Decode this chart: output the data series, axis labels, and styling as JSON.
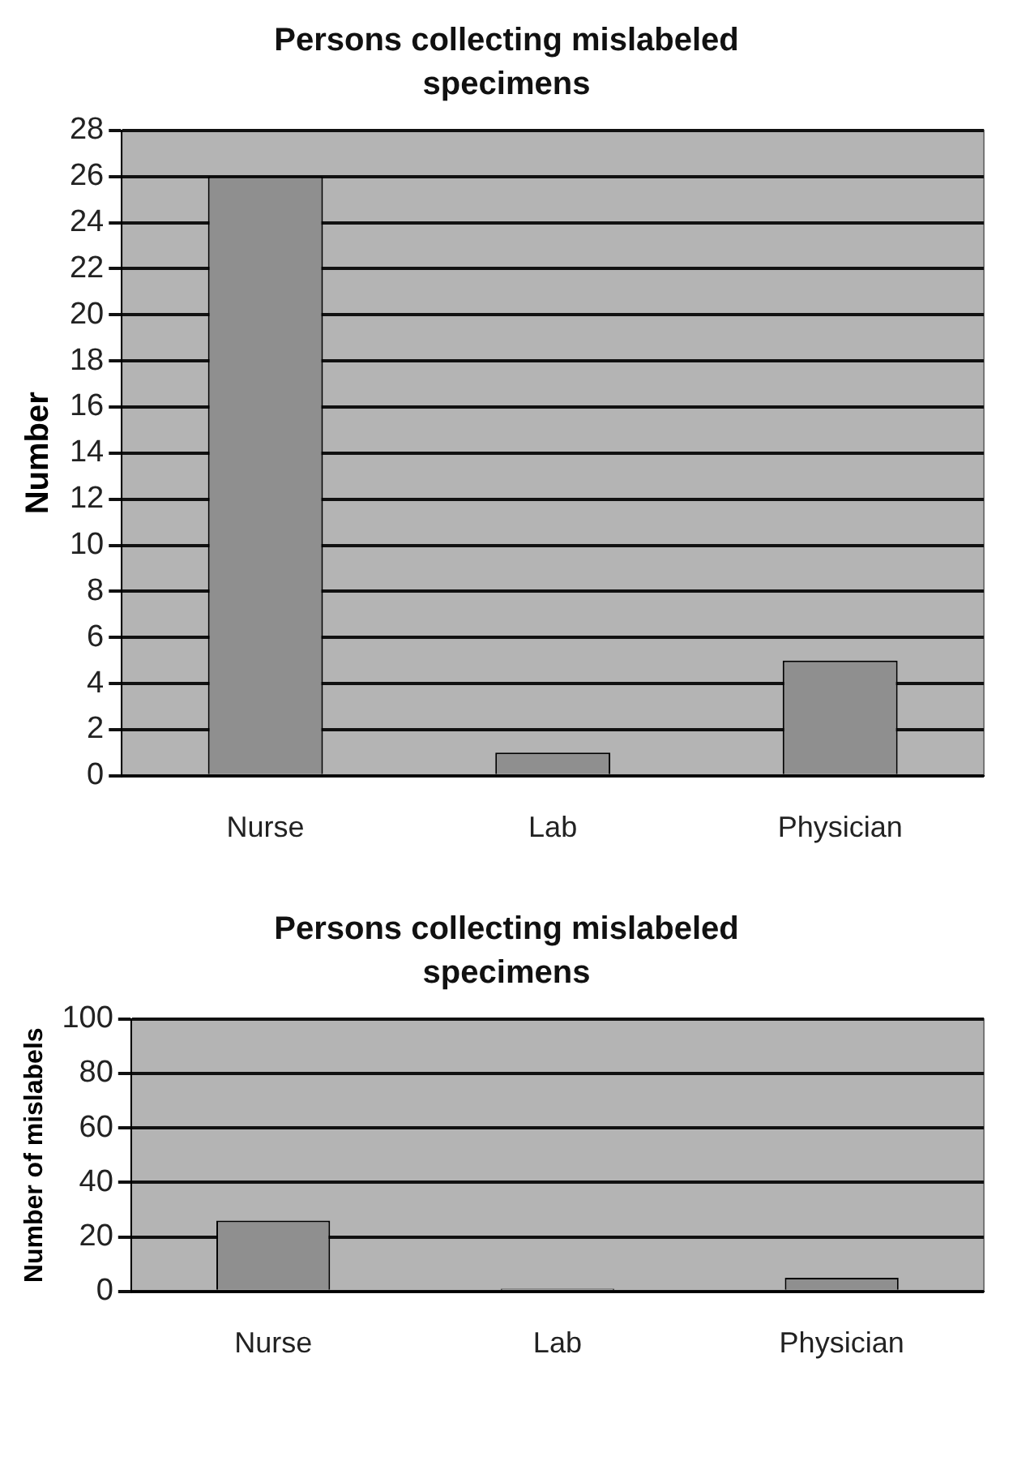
{
  "chart_data": [
    {
      "type": "bar",
      "title": "Persons collecting mislabeled specimens",
      "ylabel": "Number",
      "categories": [
        "Nurse",
        "Lab",
        "Physician"
      ],
      "values": [
        26,
        1,
        5
      ],
      "color": "#8f8f8f",
      "ylim": [
        0,
        28
      ],
      "yticks": [
        0,
        2,
        4,
        6,
        8,
        10,
        12,
        14,
        16,
        18,
        20,
        22,
        24,
        26,
        28
      ],
      "grid": "y"
    },
    {
      "type": "bar",
      "title": "Persons collecting mislabeled specimens",
      "ylabel": "Number of mislabels",
      "categories": [
        "Nurse",
        "Lab",
        "Physician"
      ],
      "values": [
        26,
        1,
        5
      ],
      "color": "#8f8f8f",
      "ylim": [
        0,
        100
      ],
      "yticks": [
        0,
        20,
        40,
        60,
        80,
        100
      ],
      "grid": "y"
    }
  ]
}
